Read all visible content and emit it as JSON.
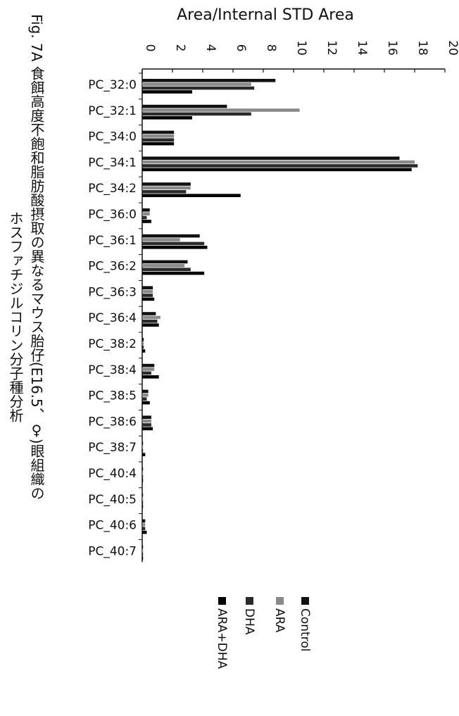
{
  "figure": {
    "caption_line1": "Fig. 7A 食餌高度不飽和脂肪酸摂取の異なるマウス胎仔(E16.5、♀)眼組織の",
    "caption_line2": "ホスファチジルコリン分子種分析"
  },
  "chart_data": {
    "type": "bar",
    "orientation": "horizontal",
    "ylabel": "Area/Internal STD Area",
    "xlim": [
      0,
      20
    ],
    "ticks": [
      0,
      2,
      4,
      6,
      8,
      10,
      12,
      14,
      16,
      18,
      20
    ],
    "tick_labels": [
      "0",
      "2",
      "4",
      "6",
      "8",
      "10",
      "12",
      "14",
      "16",
      "18",
      "20"
    ],
    "categories": [
      "PC_32:0",
      "PC_32:1",
      "PC_34:0",
      "PC_34:1",
      "PC_34:2",
      "PC_36:0",
      "PC_36:1",
      "PC_36:2",
      "PC_36:3",
      "PC_36:4",
      "PC_38:2",
      "PC_38:4",
      "PC_38:5",
      "PC_38:6",
      "PC_38:7",
      "PC_40:4",
      "PC_40:5",
      "PC_40:6",
      "PC_40:7"
    ],
    "series": [
      {
        "name": "Control",
        "color": "#111111",
        "values": [
          8.8,
          5.6,
          2.1,
          17.0,
          3.2,
          0.5,
          3.8,
          3.0,
          0.7,
          0.9,
          0.1,
          0.8,
          0.4,
          0.6,
          0.05,
          0.05,
          0.05,
          0.2,
          0.05
        ]
      },
      {
        "name": "ARA",
        "color": "#8a8a8a",
        "values": [
          7.2,
          10.4,
          2.1,
          18.0,
          3.2,
          0.5,
          2.5,
          2.8,
          0.7,
          1.2,
          0.1,
          0.8,
          0.4,
          0.6,
          0.05,
          0.05,
          0.05,
          0.2,
          0.05
        ]
      },
      {
        "name": "DHA",
        "color": "#2a2a2a",
        "values": [
          7.4,
          7.2,
          2.1,
          18.2,
          2.9,
          0.3,
          4.1,
          3.2,
          0.7,
          1.0,
          0.1,
          0.6,
          0.3,
          0.6,
          0.05,
          0.05,
          0.05,
          0.2,
          0.05
        ]
      },
      {
        "name": "ARA+DHA",
        "color": "#000000",
        "values": [
          3.3,
          3.3,
          2.1,
          17.8,
          6.5,
          0.6,
          4.3,
          4.1,
          0.8,
          1.1,
          0.2,
          1.1,
          0.5,
          0.7,
          0.2,
          0.05,
          0.05,
          0.3,
          0.05
        ]
      }
    ],
    "legend_position": "bottom",
    "grid": false
  }
}
